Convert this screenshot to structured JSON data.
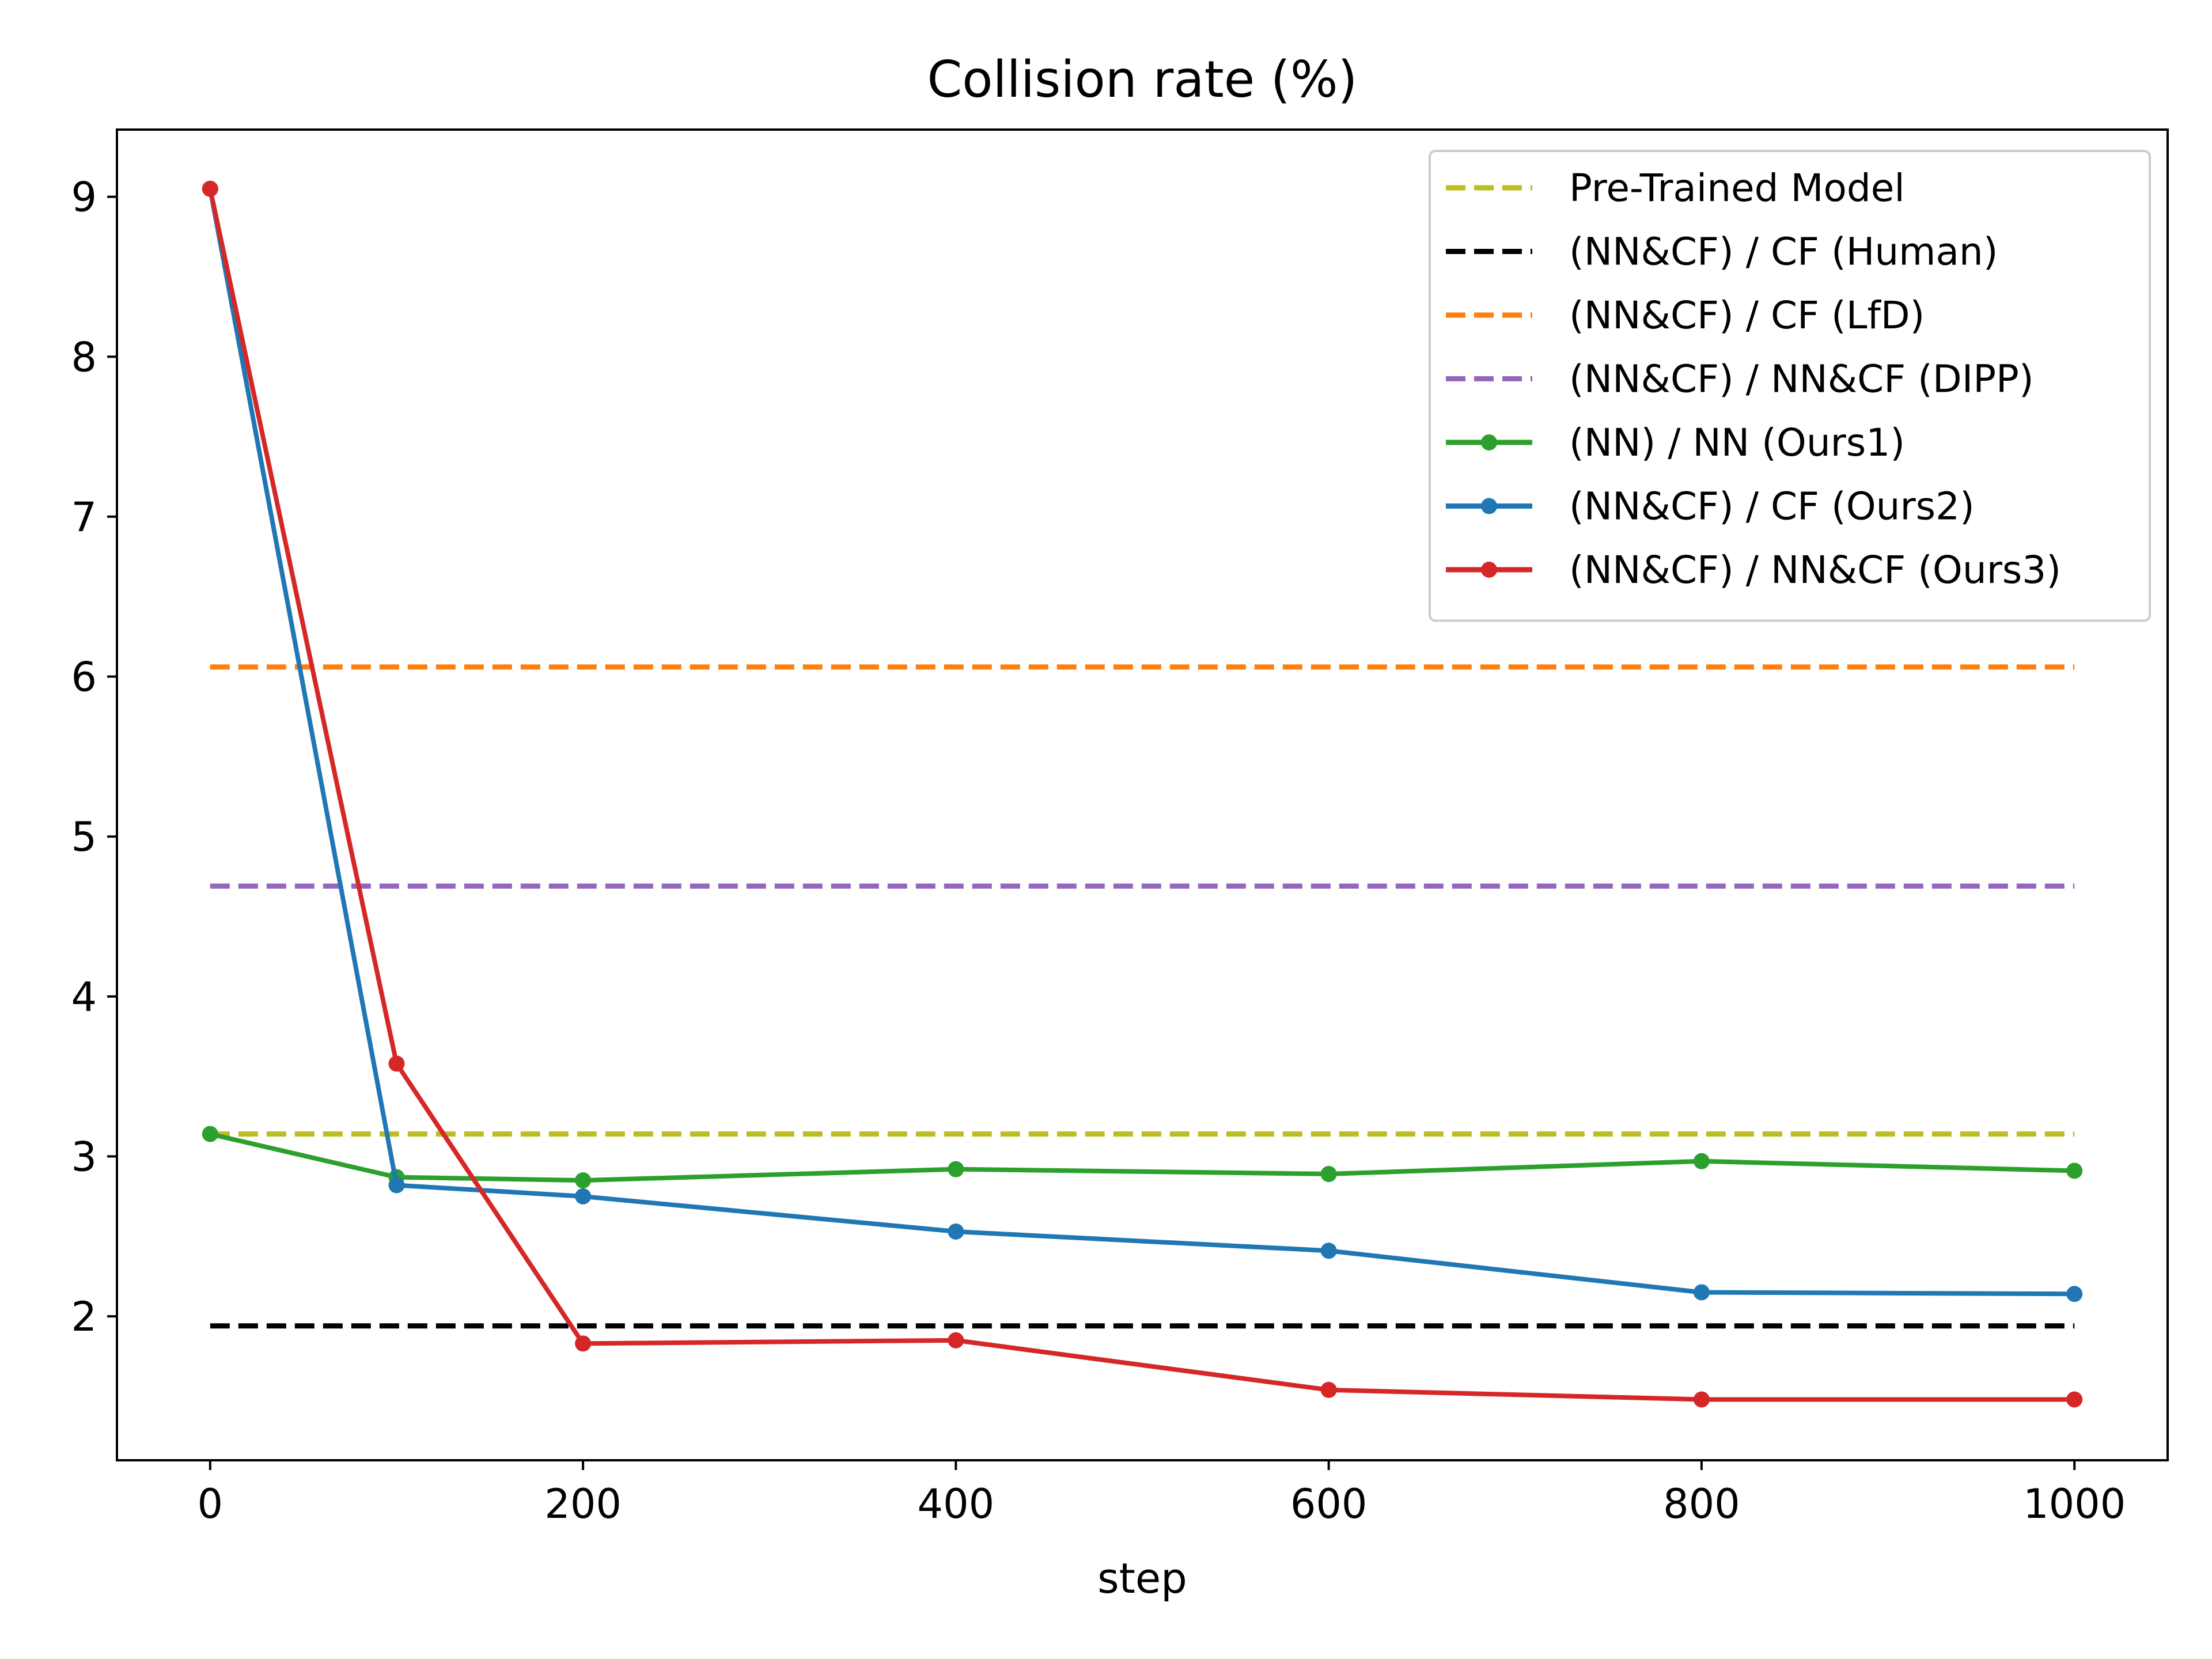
{
  "chart_data": {
    "type": "line",
    "title": "Collision rate (%)",
    "xlabel": "step",
    "ylabel": "",
    "xlim": [
      -50,
      1050
    ],
    "ylim": [
      1.1,
      9.42
    ],
    "xticks": [
      0,
      200,
      400,
      600,
      800,
      1000
    ],
    "yticks": [
      2,
      3,
      4,
      5,
      6,
      7,
      8,
      9
    ],
    "legend_position": "top-right",
    "baselines": [
      {
        "name": "Pre-Trained Model",
        "value": 3.14,
        "x_range": [
          0,
          1000
        ],
        "color": "#bcbd22",
        "style": "dashed"
      },
      {
        "name": "(NN&CF) / CF (Human)",
        "value": 1.94,
        "x_range": [
          0,
          1000
        ],
        "color": "#000000",
        "style": "dashed"
      },
      {
        "name": "(NN&CF) / CF (LfD)",
        "value": 6.06,
        "x_range": [
          0,
          1000
        ],
        "color": "#ff7f0e",
        "style": "dashed"
      },
      {
        "name": "(NN&CF) / NN&CF (DIPP)",
        "value": 4.69,
        "x_range": [
          0,
          1000
        ],
        "color": "#9467bd",
        "style": "dashed"
      }
    ],
    "series": [
      {
        "name": "(NN) / NN (Ours1)",
        "color": "#2ca02c",
        "x": [
          0,
          100,
          200,
          400,
          600,
          800,
          1000
        ],
        "values": [
          3.14,
          2.87,
          2.85,
          2.92,
          2.89,
          2.97,
          2.91
        ]
      },
      {
        "name": "(NN&CF) / CF (Ours2)",
        "color": "#1f77b4",
        "x": [
          0,
          100,
          200,
          400,
          600,
          800,
          1000
        ],
        "values": [
          9.05,
          2.82,
          2.75,
          2.53,
          2.41,
          2.15,
          2.14
        ]
      },
      {
        "name": "(NN&CF) / NN&CF (Ours3)",
        "color": "#d62728",
        "x": [
          0,
          100,
          200,
          400,
          600,
          800,
          1000
        ],
        "values": [
          9.05,
          3.58,
          1.83,
          1.85,
          1.54,
          1.48,
          1.48
        ]
      }
    ]
  }
}
